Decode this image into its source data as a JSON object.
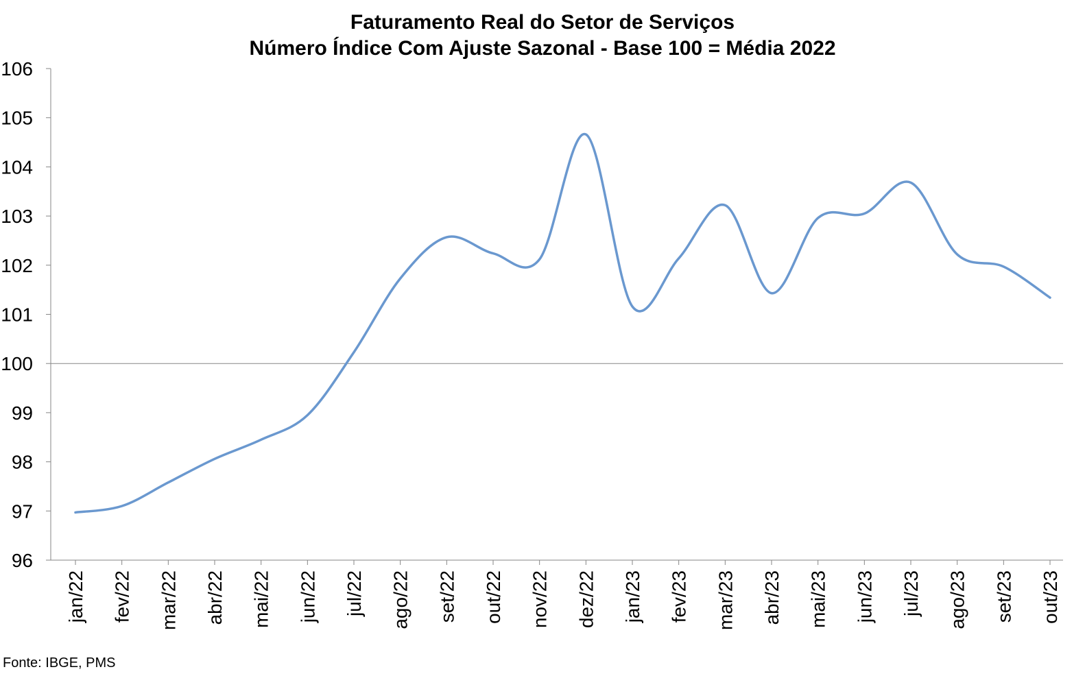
{
  "chart_data": {
    "type": "line",
    "title": "Faturamento Real do Setor de Serviços",
    "subtitle": "Número Índice Com Ajuste Sazonal - Base 100 = Média 2022",
    "xlabel": "",
    "ylabel": "",
    "ylim": [
      96,
      106
    ],
    "yticks": [
      "96",
      "97",
      "98",
      "99",
      "100",
      "101",
      "102",
      "103",
      "104",
      "105",
      "106"
    ],
    "categories": [
      "jan/22",
      "fev/22",
      "mar/22",
      "abr/22",
      "mai/22",
      "jun/22",
      "jul/22",
      "ago/22",
      "set/22",
      "out/22",
      "nov/22",
      "dez/22",
      "jan/23",
      "fev/23",
      "mar/23",
      "abr/23",
      "mai/23",
      "jun/23",
      "jul/23",
      "ago/23",
      "set/23",
      "out/23"
    ],
    "series": [
      {
        "values": [
          96.97,
          97.1,
          97.58,
          98.06,
          98.45,
          98.95,
          100.23,
          101.73,
          102.57,
          102.24,
          102.12,
          104.66,
          101.16,
          102.14,
          103.22,
          101.43,
          102.96,
          103.05,
          103.68,
          102.22,
          101.97,
          101.34
        ]
      }
    ],
    "reference_line": 100,
    "grid": false,
    "legend": "none",
    "line_color": "#6a98cf"
  },
  "source_note": "Fonte: IBGE, PMS"
}
